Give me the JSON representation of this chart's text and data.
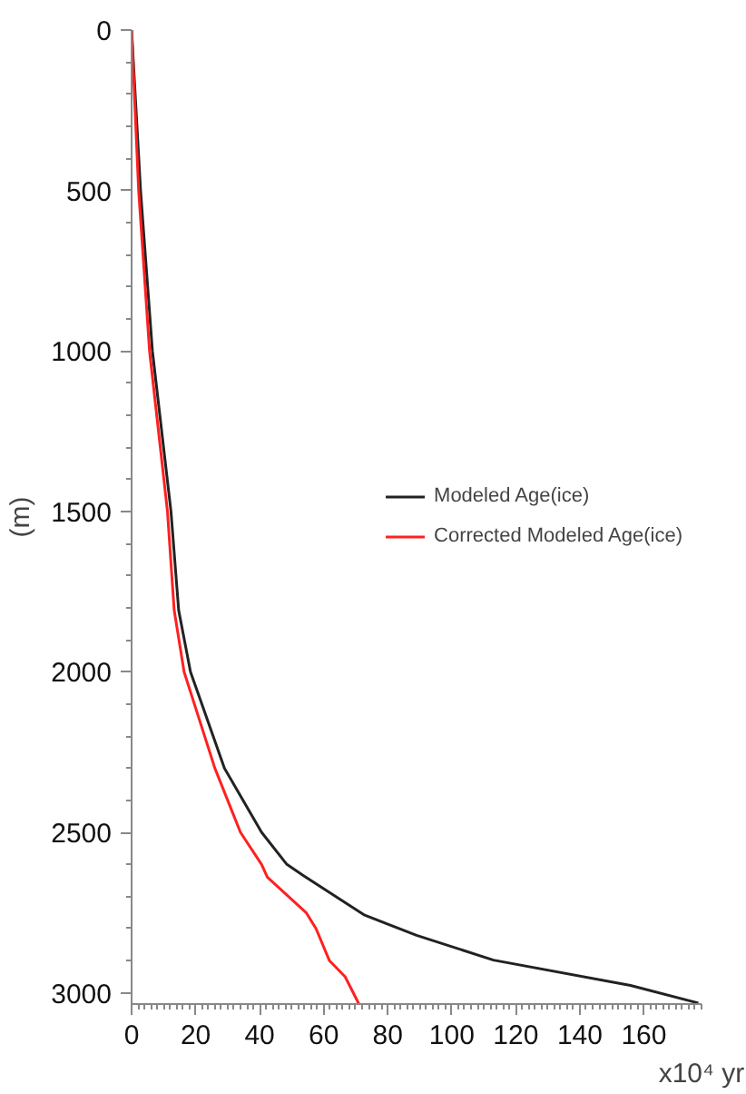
{
  "chart_data": {
    "type": "line",
    "xlabel": "x10⁴ yr",
    "ylabel": "(m)",
    "xlim": [
      0,
      178
    ],
    "ylim": [
      3035,
      0
    ],
    "xticks": [
      0,
      20,
      40,
      60,
      80,
      100,
      120,
      140,
      160
    ],
    "yticks": [
      0,
      500,
      1000,
      1500,
      2000,
      2500,
      3000
    ],
    "grid": false,
    "legend": "right",
    "marker": "none",
    "line_style": "solid",
    "series": [
      {
        "name": "Modeled Age(ice)",
        "color": "#222222",
        "x": [
          0,
          2.8,
          6.5,
          12.3,
          14.7,
          18.4,
          29,
          40.6,
          48.5,
          53.7,
          72.8,
          89,
          113,
          155.8,
          177
        ],
        "values": [
          0,
          500,
          1000,
          1500,
          1808,
          2000,
          2300,
          2500,
          2600,
          2635,
          2758,
          2821,
          2898,
          2977,
          3032
        ]
      },
      {
        "name": "Corrected Modeled Age(ice)",
        "color": "#ff2020",
        "x": [
          0,
          2.2,
          5.6,
          11.2,
          13.3,
          16.4,
          26,
          34,
          40.6,
          42.4,
          54.5,
          57.6,
          61.8,
          66.7,
          71
        ],
        "values": [
          0,
          500,
          1000,
          1500,
          1808,
          2000,
          2300,
          2500,
          2600,
          2640,
          2750,
          2800,
          2900,
          2950,
          3035
        ]
      }
    ]
  }
}
